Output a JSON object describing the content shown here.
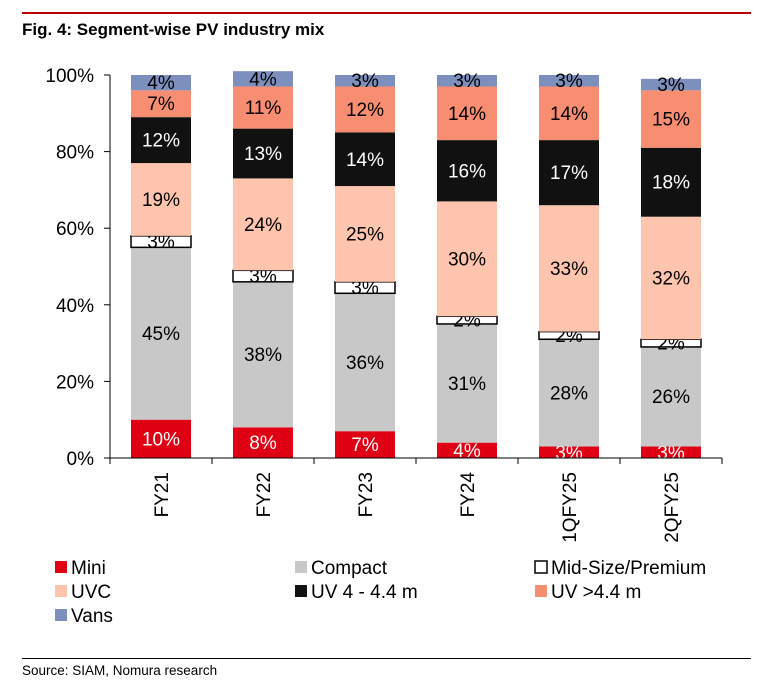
{
  "figure": {
    "title": "Fig. 4: Segment-wise PV industry mix",
    "source": "Source: SIAM, Nomura research"
  },
  "chart_data": {
    "type": "bar",
    "stacked": true,
    "categories": [
      "FY21",
      "FY22",
      "FY23",
      "FY24",
      "1QFY25",
      "2QFY25"
    ],
    "y_ticks": [
      "0%",
      "20%",
      "40%",
      "60%",
      "80%",
      "100%"
    ],
    "ylim": [
      0,
      100
    ],
    "grid": false,
    "legend_position": "bottom",
    "series": [
      {
        "name": "Mini",
        "color": "#e00014",
        "values": [
          10,
          8,
          7,
          4,
          3,
          3
        ],
        "labels": [
          "10%",
          "8%",
          "7%",
          "4%",
          "3%",
          "3%"
        ]
      },
      {
        "name": "Compact",
        "color": "#c8c8c8",
        "values": [
          45,
          38,
          36,
          31,
          28,
          26
        ],
        "labels": [
          "45%",
          "38%",
          "36%",
          "31%",
          "28%",
          "26%"
        ]
      },
      {
        "name": "Mid-Size/Premium",
        "color": "#ffffff",
        "values": [
          3,
          3,
          3,
          2,
          2,
          2
        ],
        "labels": [
          "3%",
          "3%",
          "3%",
          "2%",
          "2%",
          "2%"
        ]
      },
      {
        "name": "UVC",
        "color": "#ffc4ad",
        "values": [
          19,
          24,
          25,
          30,
          33,
          32
        ],
        "labels": [
          "19%",
          "24%",
          "25%",
          "30%",
          "33%",
          "32%"
        ]
      },
      {
        "name": "UV 4 - 4.4 m",
        "color": "#111111",
        "values": [
          12,
          13,
          14,
          16,
          17,
          18
        ],
        "labels": [
          "12%",
          "13%",
          "14%",
          "16%",
          "17%",
          "18%"
        ]
      },
      {
        "name": "UV >4.4 m",
        "color": "#f78d71",
        "values": [
          7,
          11,
          12,
          14,
          14,
          15
        ],
        "labels": [
          "7%",
          "11%",
          "12%",
          "14%",
          "14%",
          "15%"
        ]
      },
      {
        "name": "Vans",
        "color": "#7d8fbd",
        "values": [
          4,
          4,
          3,
          3,
          3,
          3
        ],
        "labels": [
          "4%",
          "4%",
          "3%",
          "3%",
          "3%",
          "3%"
        ]
      }
    ]
  }
}
